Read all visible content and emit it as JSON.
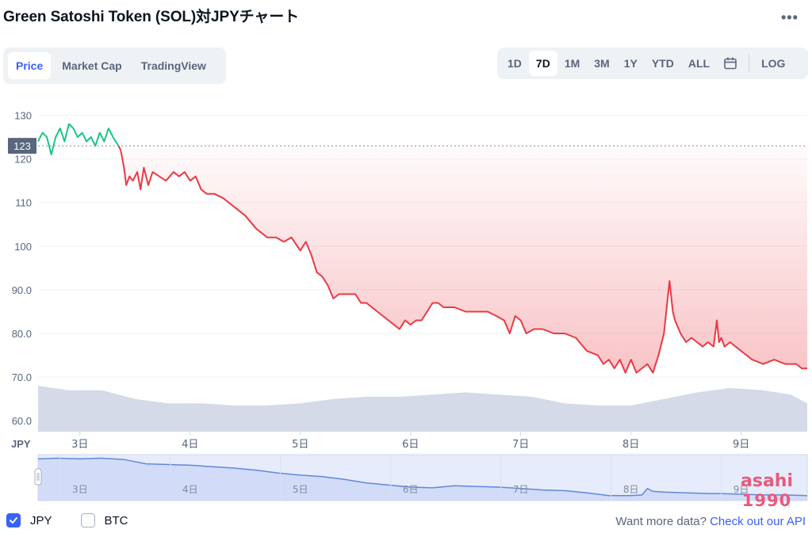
{
  "header": {
    "title": "Green Satoshi Token (SOL)対JPYチャート",
    "more_icon": "more-horizontal-icon"
  },
  "tabs": [
    {
      "label": "Price",
      "active": true
    },
    {
      "label": "Market Cap",
      "active": false
    },
    {
      "label": "TradingView",
      "active": false
    }
  ],
  "ranges": [
    {
      "label": "1D",
      "active": false
    },
    {
      "label": "7D",
      "active": true
    },
    {
      "label": "1M",
      "active": false
    },
    {
      "label": "3M",
      "active": false
    },
    {
      "label": "1Y",
      "active": false
    },
    {
      "label": "YTD",
      "active": false
    },
    {
      "label": "ALL",
      "active": false
    }
  ],
  "calendar_icon": "calendar-icon",
  "log_label": "LOG",
  "chart_data": {
    "type": "line",
    "currency_label": "JPY",
    "y_ticks": [
      "130",
      "120",
      "110",
      "100",
      "90.0",
      "80.0",
      "70.0",
      "60.0"
    ],
    "y_tick_values": [
      130,
      120,
      110,
      100,
      90,
      80,
      70,
      60
    ],
    "ylim": [
      57.5,
      133
    ],
    "x_ticks": [
      "3日",
      "4日",
      "5日",
      "6日",
      "7日",
      "8日",
      "9日"
    ],
    "x_tick_values": [
      3,
      4,
      5,
      6,
      7,
      8,
      9
    ],
    "xlim": [
      2.62,
      9.6
    ],
    "reference_value": 123,
    "reference_label": "123",
    "colors": {
      "up": "#16c784",
      "down": "#ea3943",
      "volume": "#cfd6e4",
      "navigator": "#6188d9"
    },
    "price_series": {
      "x": [
        2.62,
        2.66,
        2.7,
        2.74,
        2.78,
        2.82,
        2.86,
        2.9,
        2.94,
        2.98,
        3.02,
        3.06,
        3.1,
        3.14,
        3.18,
        3.22,
        3.26,
        3.3,
        3.35,
        3.37,
        3.4,
        3.42,
        3.45,
        3.48,
        3.52,
        3.55,
        3.58,
        3.62,
        3.66,
        3.72,
        3.78,
        3.85,
        3.9,
        3.95,
        4.0,
        4.05,
        4.1,
        4.15,
        4.22,
        4.3,
        4.4,
        4.5,
        4.6,
        4.7,
        4.78,
        4.85,
        4.92,
        5.0,
        5.05,
        5.1,
        5.15,
        5.2,
        5.25,
        5.3,
        5.35,
        5.42,
        5.5,
        5.55,
        5.6,
        5.7,
        5.8,
        5.9,
        5.95,
        6.0,
        6.05,
        6.1,
        6.2,
        6.25,
        6.3,
        6.4,
        6.5,
        6.6,
        6.7,
        6.78,
        6.85,
        6.9,
        6.95,
        7.0,
        7.05,
        7.12,
        7.2,
        7.3,
        7.4,
        7.5,
        7.6,
        7.7,
        7.75,
        7.8,
        7.85,
        7.9,
        7.95,
        8.0,
        8.05,
        8.1,
        8.15,
        8.2,
        8.25,
        8.3,
        8.35,
        8.38,
        8.4,
        8.45,
        8.5,
        8.55,
        8.6,
        8.65,
        8.7,
        8.75,
        8.78,
        8.8,
        8.82,
        8.85,
        8.9,
        9.0,
        9.05,
        9.1,
        9.2,
        9.3,
        9.4,
        9.5,
        9.55,
        9.6
      ],
      "y": [
        124,
        126,
        125,
        121,
        125,
        127,
        124,
        128,
        127,
        125,
        126,
        124,
        125,
        123,
        126,
        124,
        127,
        125,
        123,
        122,
        118,
        114,
        116,
        115,
        117,
        113,
        118,
        114,
        117,
        116,
        115,
        117,
        116,
        117,
        115,
        116,
        113,
        112,
        112,
        111,
        109,
        107,
        104,
        102,
        102,
        101,
        102,
        99,
        101,
        98,
        94,
        93,
        91,
        88,
        89,
        89,
        89,
        87,
        87,
        85,
        83,
        81,
        83,
        82,
        83,
        83,
        87,
        87,
        86,
        86,
        85,
        85,
        85,
        84,
        83,
        80,
        84,
        83,
        80,
        81,
        81,
        80,
        80,
        79,
        76,
        75,
        73,
        74,
        72,
        74,
        71,
        74,
        71,
        72,
        73,
        71,
        75,
        80,
        92,
        85,
        83,
        80,
        78,
        79,
        78,
        77,
        78,
        77,
        83,
        78,
        79,
        77,
        78,
        76,
        75,
        74,
        73,
        74,
        73,
        73,
        72,
        72
      ]
    },
    "volume_series": {
      "x": [
        2.62,
        2.9,
        3.2,
        3.5,
        3.8,
        4.1,
        4.4,
        4.7,
        5.0,
        5.3,
        5.6,
        5.9,
        6.2,
        6.5,
        6.8,
        7.1,
        7.4,
        7.7,
        8.0,
        8.3,
        8.6,
        8.9,
        9.2,
        9.45,
        9.6
      ],
      "y": [
        68,
        67,
        67,
        65,
        64,
        64,
        63.5,
        63.5,
        64,
        65,
        65.5,
        65.5,
        66,
        66.5,
        66,
        65.5,
        64,
        63.5,
        63.5,
        65,
        66.5,
        67.5,
        67,
        66,
        64
      ]
    },
    "navigator_series": {
      "x": [
        2.62,
        2.8,
        3.0,
        3.2,
        3.4,
        3.6,
        3.8,
        4.0,
        4.2,
        4.4,
        4.6,
        4.8,
        5.0,
        5.2,
        5.4,
        5.6,
        5.8,
        6.0,
        6.2,
        6.4,
        6.6,
        6.8,
        7.0,
        7.2,
        7.4,
        7.6,
        7.8,
        8.0,
        8.1,
        8.15,
        8.2,
        8.3,
        8.5,
        8.7,
        8.8,
        9.0,
        9.2,
        9.4,
        9.6
      ],
      "y": [
        124,
        125,
        124,
        125,
        123,
        117,
        116,
        115,
        113,
        111,
        108,
        104,
        101,
        99,
        95,
        90,
        87,
        84,
        83,
        86,
        85,
        84,
        82,
        80,
        79,
        76,
        72,
        72,
        73,
        82,
        78,
        77,
        76,
        75,
        75,
        74,
        73,
        73,
        72
      ]
    }
  },
  "navigator": {
    "x_ticks": [
      "3日",
      "4日",
      "5日",
      "6日",
      "7日",
      "8日",
      "9日"
    ],
    "handle_icon": "drag-handle-icon"
  },
  "legend": [
    {
      "label": "JPY",
      "checked": true
    },
    {
      "label": "BTC",
      "checked": false
    }
  ],
  "api_prompt": {
    "text": "Want more data?",
    "link": "Check out our API"
  },
  "watermark": {
    "line1": "asahi",
    "line2": "1990"
  }
}
